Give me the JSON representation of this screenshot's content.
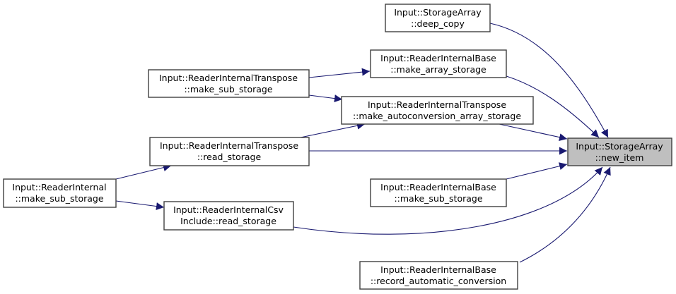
{
  "colors": {
    "edge": "#191970",
    "node_border": "#404040",
    "current_node_fill": "#bfbfbf"
  },
  "nodes": {
    "deep_copy": {
      "line1": "Input::StorageArray",
      "line2": "::deep_copy"
    },
    "make_array_storage": {
      "line1": "Input::ReaderInternalBase",
      "line2": "::make_array_storage"
    },
    "transpose_make_sub_storage": {
      "line1": "Input::ReaderInternalTranspose",
      "line2": "::make_sub_storage"
    },
    "make_autoconversion_array_storage": {
      "line1": "Input::ReaderInternalTranspose",
      "line2": "::make_autoconversion_array_storage"
    },
    "transpose_read_storage": {
      "line1": "Input::ReaderInternalTranspose",
      "line2": "::read_storage"
    },
    "new_item": {
      "line1": "Input::StorageArray",
      "line2": "::new_item"
    },
    "internal_make_sub_storage": {
      "line1": "Input::ReaderInternal",
      "line2": "::make_sub_storage"
    },
    "base_make_sub_storage": {
      "line1": "Input::ReaderInternalBase",
      "line2": "::make_sub_storage"
    },
    "csv_read_storage": {
      "line1": "Input::ReaderInternalCsv",
      "line2": "Include::read_storage"
    },
    "record_automatic_conversion": {
      "line1": "Input::ReaderInternalBase",
      "line2": "::record_automatic_conversion"
    }
  },
  "edges": [
    {
      "from": "deep_copy",
      "to": "new_item"
    },
    {
      "from": "make_array_storage",
      "to": "new_item"
    },
    {
      "from": "make_autoconversion_array_storage",
      "to": "new_item"
    },
    {
      "from": "transpose_read_storage",
      "to": "new_item"
    },
    {
      "from": "base_make_sub_storage",
      "to": "new_item"
    },
    {
      "from": "csv_read_storage",
      "to": "new_item"
    },
    {
      "from": "record_automatic_conversion",
      "to": "new_item"
    },
    {
      "from": "transpose_make_sub_storage",
      "to": "make_array_storage"
    },
    {
      "from": "transpose_make_sub_storage",
      "to": "make_autoconversion_array_storage"
    },
    {
      "from": "transpose_read_storage",
      "to": "make_autoconversion_array_storage"
    },
    {
      "from": "internal_make_sub_storage",
      "to": "transpose_read_storage"
    },
    {
      "from": "internal_make_sub_storage",
      "to": "csv_read_storage"
    }
  ]
}
